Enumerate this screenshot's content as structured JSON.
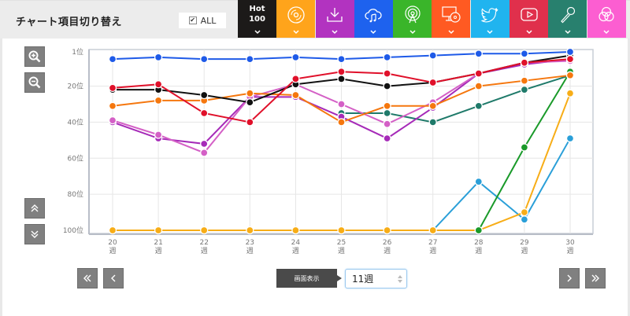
{
  "header": {
    "title": "チャート項目切り替え",
    "all_toggle": {
      "label": "ALL",
      "checked": true,
      "check_glyph": "✔"
    }
  },
  "tabs": [
    {
      "id": "hot100",
      "label_line1": "Hot",
      "label_line2": "100",
      "icon": "text",
      "color": "#1c1a19"
    },
    {
      "id": "cd-sales",
      "icon": "disc-icon",
      "color": "#ffa41b"
    },
    {
      "id": "download",
      "icon": "download-icon",
      "color": "#b233c0"
    },
    {
      "id": "streaming",
      "icon": "cloud-music-icon",
      "color": "#1e62ee"
    },
    {
      "id": "radio",
      "icon": "broadcast-icon",
      "color": "#3ab52a"
    },
    {
      "id": "pc-lookup",
      "icon": "monitor-disc-icon",
      "color": "#ff5a22"
    },
    {
      "id": "twitter",
      "icon": "twitter-bird-icon",
      "color": "#20b4ef"
    },
    {
      "id": "youtube",
      "icon": "video-play-icon",
      "color": "#e0304c"
    },
    {
      "id": "karaoke",
      "icon": "microphone-icon",
      "color": "#28806e"
    },
    {
      "id": "gyao",
      "icon": "circles-icon",
      "color": "#fc5ed1"
    }
  ],
  "controls": {
    "zoom_in": "zoom-in",
    "zoom_out": "zoom-out",
    "scroll_up": "scroll-up",
    "scroll_down": "scroll-down",
    "display_label": "画面表示",
    "week_select_value": "11週"
  },
  "chart_data": {
    "type": "line",
    "title": "",
    "xlabel": "",
    "ylabel": "",
    "y_inverted": true,
    "ylim": [
      1,
      100
    ],
    "y_ticks": [
      "1位",
      "20位",
      "40位",
      "60位",
      "80位",
      "100位"
    ],
    "y_tick_values": [
      1,
      20,
      40,
      60,
      80,
      100
    ],
    "categories": [
      "20",
      "21",
      "22",
      "23",
      "24",
      "25",
      "26",
      "27",
      "28",
      "29",
      "30"
    ],
    "category_suffix": "週",
    "grid": true,
    "legend": "none",
    "series": [
      {
        "name": "Streaming",
        "color": "#1e5ae8",
        "values": [
          5,
          4,
          5,
          5,
          4,
          5,
          4,
          3,
          2,
          2,
          1
        ]
      },
      {
        "name": "YouTube",
        "color": "#e0102a",
        "values": [
          21,
          19,
          35,
          40,
          16,
          12,
          13,
          18,
          13,
          7,
          5
        ]
      },
      {
        "name": "Hot 100",
        "color": "#111111",
        "values": [
          22,
          22,
          25,
          29,
          19,
          16,
          20,
          18,
          13,
          7,
          3
        ]
      },
      {
        "name": "PC Lookup",
        "color": "#f5770e",
        "values": [
          31,
          28,
          28,
          24,
          25,
          40,
          31,
          31,
          20,
          17,
          14
        ]
      },
      {
        "name": "GYAO",
        "color": "#d460c6",
        "values": [
          39,
          47,
          57,
          26,
          19,
          30,
          41,
          29,
          13,
          7,
          6
        ]
      },
      {
        "name": "Download",
        "color": "#a62ab8",
        "values": [
          40,
          49,
          52,
          26,
          26,
          37,
          49,
          32,
          13,
          8,
          5
        ]
      },
      {
        "name": "Karaoke",
        "color": "#1f7a6a",
        "values": [
          null,
          null,
          null,
          null,
          null,
          35,
          35,
          40,
          31,
          22,
          14
        ]
      },
      {
        "name": "Radio",
        "color": "#1a9a2a",
        "values": [
          null,
          null,
          null,
          null,
          null,
          null,
          null,
          null,
          100,
          54,
          12
        ]
      },
      {
        "name": "CD Sales",
        "color": "#f7ad17",
        "values": [
          100,
          100,
          100,
          100,
          100,
          100,
          100,
          100,
          100,
          90,
          24
        ]
      },
      {
        "name": "Twitter",
        "color": "#2a9fd8",
        "values": [
          null,
          null,
          null,
          null,
          null,
          null,
          null,
          100,
          73,
          94,
          49
        ]
      }
    ]
  }
}
